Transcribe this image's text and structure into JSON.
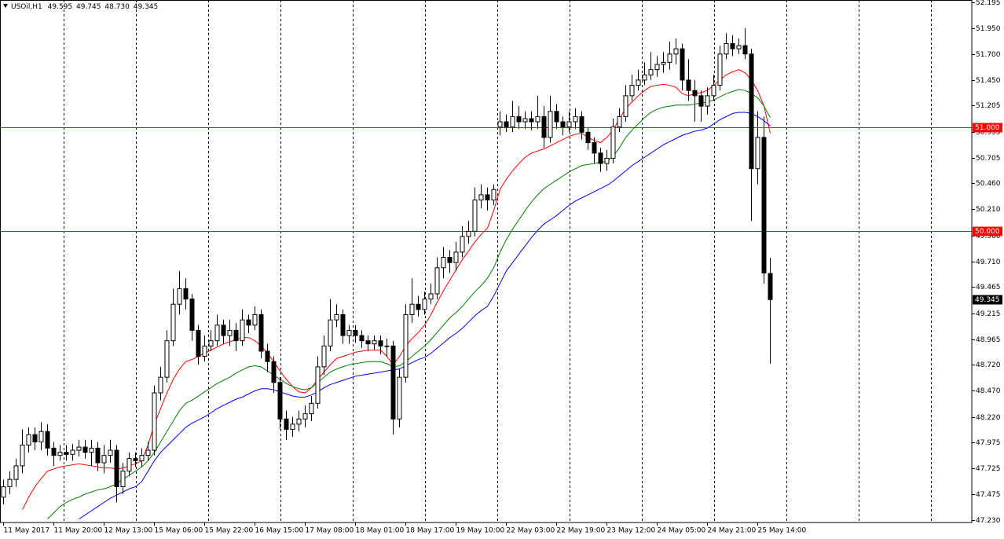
{
  "chart_data": {
    "type": "candlestick",
    "symbol": "USOil,H1",
    "ohlc_labels": [
      "49.595",
      "49.745",
      "48.730",
      "49.345"
    ],
    "categories": [
      "11 May 2017",
      null,
      null,
      null,
      null,
      null,
      null,
      null,
      "11 May 20:00",
      null,
      null,
      null,
      null,
      null,
      null,
      null,
      "12 May 13:00",
      null,
      null,
      null,
      null,
      null,
      null,
      null,
      "15 May 06:00",
      null,
      null,
      null,
      null,
      null,
      null,
      null,
      "15 May 22:00",
      null,
      null,
      null,
      null,
      null,
      null,
      null,
      "16 May 15:00",
      null,
      null,
      null,
      null,
      null,
      null,
      null,
      "17 May 08:00",
      null,
      null,
      null,
      null,
      null,
      null,
      null,
      "18 May 01:00",
      null,
      null,
      null,
      null,
      null,
      null,
      null,
      "18 May 17:00",
      null,
      null,
      null,
      null,
      null,
      null,
      null,
      "19 May 10:00",
      null,
      null,
      null,
      null,
      null,
      null,
      null,
      "22 May 03:00",
      null,
      null,
      null,
      null,
      null,
      null,
      null,
      "22 May 19:00",
      null,
      null,
      null,
      null,
      null,
      null,
      null,
      "23 May 12:00",
      null,
      null,
      null,
      null,
      null,
      null,
      null,
      "24 May 05:00",
      null,
      null,
      null,
      null,
      null,
      null,
      null,
      "24 May 21:00",
      null,
      null,
      null,
      null,
      null,
      null,
      null,
      "25 May 14:00",
      null,
      null
    ],
    "candles": {
      "open": [
        47.45,
        47.55,
        47.62,
        47.75,
        47.95,
        48.05,
        47.98,
        48.08,
        47.92,
        47.85,
        47.88,
        47.86,
        47.9,
        47.93,
        47.88,
        47.92,
        47.78,
        47.85,
        47.9,
        47.55,
        47.7,
        47.82,
        47.8,
        47.85,
        47.9,
        48.45,
        48.6,
        48.95,
        49.3,
        49.45,
        49.35,
        49.05,
        48.8,
        48.9,
        48.95,
        49.1,
        49.0,
        49.05,
        48.95,
        49.15,
        49.1,
        49.2,
        48.85,
        48.75,
        48.55,
        48.2,
        48.1,
        48.15,
        48.2,
        48.25,
        48.35,
        48.7,
        48.9,
        49.15,
        49.2,
        49.0,
        49.05,
        49.0,
        48.95,
        48.92,
        48.95,
        48.9,
        48.9,
        48.2,
        48.6,
        49.2,
        49.3,
        49.25,
        49.35,
        49.4,
        49.65,
        49.75,
        49.7,
        49.8,
        49.95,
        50.0,
        50.3,
        50.35,
        50.3,
        51.0,
        51.05,
        51.0,
        51.1,
        51.05,
        51.08,
        51.05,
        51.1,
        50.9,
        51.15,
        51.05,
        51.0,
        51.05,
        51.1,
        50.95,
        50.85,
        50.75,
        50.65,
        50.7,
        51.0,
        51.1,
        51.3,
        51.4,
        51.45,
        51.5,
        51.55,
        51.6,
        51.62,
        51.7,
        51.75,
        51.45,
        51.35,
        51.3,
        51.2,
        51.3,
        51.4,
        51.7,
        51.8,
        51.75,
        51.78,
        51.7,
        50.6,
        50.9,
        49.595
      ],
      "high": [
        47.62,
        47.7,
        47.82,
        48.1,
        48.12,
        48.12,
        48.17,
        48.15,
        47.98,
        47.95,
        47.95,
        47.96,
        48.0,
        48.0,
        48.0,
        47.98,
        47.95,
        48.0,
        47.95,
        47.78,
        47.88,
        47.88,
        47.92,
        47.98,
        48.52,
        48.7,
        49.05,
        49.45,
        49.62,
        49.55,
        49.4,
        49.1,
        49.0,
        49.05,
        49.2,
        49.15,
        49.15,
        49.12,
        49.25,
        49.2,
        49.28,
        49.25,
        48.92,
        48.8,
        48.6,
        48.28,
        48.22,
        48.28,
        48.33,
        48.42,
        48.8,
        49.0,
        49.35,
        49.3,
        49.25,
        49.1,
        49.1,
        49.05,
        49.0,
        49.0,
        49.0,
        48.97,
        48.95,
        48.68,
        49.3,
        49.55,
        49.38,
        49.42,
        49.5,
        49.75,
        49.85,
        49.82,
        49.9,
        50.05,
        50.1,
        50.42,
        50.45,
        50.42,
        50.45,
        51.15,
        51.12,
        51.25,
        51.2,
        51.15,
        51.15,
        51.3,
        51.2,
        51.3,
        51.22,
        51.1,
        51.15,
        51.18,
        51.15,
        51.0,
        50.9,
        50.8,
        50.78,
        51.08,
        51.18,
        51.4,
        51.5,
        51.55,
        51.62,
        51.72,
        51.68,
        51.72,
        51.82,
        51.85,
        51.8,
        51.65,
        51.45,
        51.35,
        51.38,
        51.5,
        51.78,
        51.9,
        51.88,
        51.85,
        51.95,
        51.75,
        51.15,
        51.1,
        49.745
      ],
      "low": [
        47.38,
        47.48,
        47.55,
        47.68,
        47.88,
        47.9,
        47.9,
        47.85,
        47.75,
        47.8,
        47.8,
        47.8,
        47.84,
        47.82,
        47.75,
        47.7,
        47.68,
        47.78,
        47.4,
        47.48,
        47.65,
        47.74,
        47.74,
        47.8,
        47.85,
        48.38,
        48.55,
        48.9,
        49.2,
        49.25,
        48.95,
        48.72,
        48.75,
        48.85,
        48.9,
        48.92,
        48.9,
        48.85,
        48.9,
        49.02,
        49.05,
        48.78,
        48.65,
        48.45,
        48.1,
        48.0,
        48.03,
        48.08,
        48.12,
        48.18,
        48.3,
        48.62,
        48.85,
        49.08,
        48.92,
        48.92,
        48.93,
        48.88,
        48.85,
        48.86,
        48.82,
        48.8,
        48.05,
        48.12,
        48.55,
        49.12,
        49.18,
        49.2,
        49.3,
        49.35,
        49.55,
        49.6,
        49.62,
        49.75,
        49.88,
        49.95,
        50.22,
        50.2,
        50.25,
        50.92,
        50.95,
        50.95,
        50.98,
        50.98,
        50.97,
        50.98,
        50.8,
        50.85,
        50.98,
        50.92,
        50.95,
        50.98,
        50.88,
        50.78,
        50.65,
        50.57,
        50.58,
        50.65,
        50.95,
        51.05,
        51.25,
        51.35,
        51.4,
        51.45,
        51.48,
        51.52,
        51.55,
        51.6,
        51.35,
        51.25,
        51.05,
        51.05,
        51.12,
        51.25,
        51.35,
        51.65,
        51.68,
        51.7,
        51.65,
        50.1,
        50.45,
        49.5,
        48.73
      ],
      "close": [
        47.55,
        47.62,
        47.75,
        47.95,
        48.05,
        47.98,
        48.08,
        47.92,
        47.85,
        47.88,
        47.86,
        47.9,
        47.93,
        47.88,
        47.92,
        47.78,
        47.85,
        47.9,
        47.55,
        47.7,
        47.82,
        47.8,
        47.85,
        47.9,
        48.45,
        48.6,
        48.95,
        49.3,
        49.45,
        49.35,
        49.05,
        48.8,
        48.9,
        48.95,
        49.1,
        49.0,
        49.05,
        48.95,
        49.15,
        49.1,
        49.2,
        48.85,
        48.75,
        48.55,
        48.2,
        48.1,
        48.15,
        48.2,
        48.25,
        48.35,
        48.7,
        48.9,
        49.15,
        49.2,
        49.0,
        49.05,
        49.0,
        48.95,
        48.92,
        48.95,
        48.9,
        48.9,
        48.2,
        48.6,
        49.2,
        49.3,
        49.25,
        49.35,
        49.4,
        49.65,
        49.75,
        49.7,
        49.8,
        49.95,
        50.0,
        50.3,
        50.35,
        50.3,
        50.4,
        51.05,
        51.0,
        51.1,
        51.05,
        51.08,
        51.05,
        51.1,
        50.9,
        51.15,
        51.05,
        51.0,
        51.05,
        51.1,
        50.95,
        50.85,
        50.75,
        50.65,
        50.7,
        51.0,
        51.1,
        51.3,
        51.4,
        51.45,
        51.5,
        51.55,
        51.6,
        51.62,
        51.7,
        51.75,
        51.45,
        51.35,
        51.3,
        51.2,
        51.3,
        51.4,
        51.7,
        51.8,
        51.75,
        51.78,
        51.7,
        50.6,
        50.9,
        49.6,
        49.345
      ]
    },
    "up_color": "#ffffff",
    "down_color": "#000000",
    "wick_color": "#000000",
    "lines": [
      {
        "color": "#ff0000",
        "values": [
          null,
          null,
          null,
          47.33,
          47.45,
          47.55,
          47.63,
          47.7,
          47.72,
          47.74,
          47.75,
          47.76,
          47.77,
          47.76,
          47.75,
          47.74,
          47.73,
          47.73,
          47.72,
          47.73,
          47.75,
          47.77,
          47.8,
          47.95,
          48.15,
          48.3,
          48.45,
          48.58,
          48.68,
          48.75,
          48.77,
          48.8,
          48.83,
          48.86,
          48.89,
          48.92,
          48.94,
          48.96,
          48.98,
          48.98,
          48.95,
          48.9,
          48.83,
          48.75,
          48.66,
          48.58,
          48.51,
          48.46,
          48.45,
          48.5,
          48.58,
          48.65,
          48.72,
          48.78,
          48.8,
          48.82,
          48.84,
          48.85,
          48.86,
          48.86,
          48.86,
          48.8,
          48.72,
          48.8,
          48.9,
          48.97,
          49.03,
          49.1,
          49.2,
          49.32,
          49.43,
          49.53,
          49.63,
          49.73,
          49.81,
          49.9,
          49.97,
          50.03,
          50.2,
          50.4,
          50.5,
          50.58,
          50.65,
          50.71,
          50.75,
          50.77,
          50.79,
          50.82,
          50.85,
          50.88,
          50.91,
          50.93,
          50.94,
          50.9,
          50.87,
          50.85,
          50.9,
          50.97,
          51.08,
          51.18,
          51.24,
          51.3,
          51.35,
          51.39,
          51.4,
          51.41,
          51.4,
          51.38,
          51.32,
          51.3,
          51.32,
          51.33,
          51.35,
          51.4,
          51.45,
          51.5,
          51.53,
          51.55,
          51.52,
          51.45,
          51.35,
          51.2,
          50.94
        ]
      },
      {
        "color": "#008000",
        "values": [
          null,
          null,
          null,
          null,
          null,
          null,
          null,
          47.24,
          47.3,
          47.36,
          47.4,
          47.43,
          47.45,
          47.48,
          47.5,
          47.52,
          47.53,
          47.55,
          47.58,
          47.62,
          47.66,
          47.7,
          47.74,
          47.8,
          47.88,
          47.98,
          48.08,
          48.18,
          48.28,
          48.35,
          48.38,
          48.42,
          48.46,
          48.5,
          48.54,
          48.57,
          48.6,
          48.64,
          48.67,
          48.7,
          48.71,
          48.7,
          48.66,
          48.62,
          48.58,
          48.54,
          48.51,
          48.49,
          48.48,
          48.5,
          48.55,
          48.6,
          48.65,
          48.68,
          48.7,
          48.72,
          48.73,
          48.74,
          48.75,
          48.75,
          48.75,
          48.73,
          48.7,
          48.71,
          48.75,
          48.8,
          48.85,
          48.9,
          48.96,
          49.03,
          49.1,
          49.17,
          49.22,
          49.28,
          49.35,
          49.42,
          49.48,
          49.55,
          49.65,
          49.8,
          49.92,
          50.02,
          50.11,
          50.2,
          50.28,
          50.35,
          50.41,
          50.45,
          50.49,
          50.53,
          50.57,
          50.6,
          50.63,
          50.64,
          50.65,
          50.66,
          50.67,
          50.72,
          50.8,
          50.9,
          50.97,
          51.03,
          51.09,
          51.14,
          51.17,
          51.19,
          51.2,
          51.21,
          51.21,
          51.21,
          51.22,
          51.23,
          51.24,
          51.26,
          51.29,
          51.32,
          51.34,
          51.36,
          51.35,
          51.32,
          51.28,
          51.2,
          51.09
        ]
      },
      {
        "color": "#0000ff",
        "values": [
          null,
          null,
          null,
          null,
          null,
          null,
          null,
          null,
          null,
          null,
          null,
          null,
          47.24,
          47.28,
          47.32,
          47.36,
          47.4,
          47.44,
          47.47,
          47.5,
          47.53,
          47.55,
          47.6,
          47.7,
          47.8,
          47.88,
          47.94,
          48.0,
          48.06,
          48.12,
          48.16,
          48.19,
          48.22,
          48.26,
          48.3,
          48.33,
          48.36,
          48.39,
          48.41,
          48.44,
          48.47,
          48.49,
          48.49,
          48.48,
          48.46,
          48.44,
          48.42,
          48.41,
          48.41,
          48.43,
          48.46,
          48.5,
          48.53,
          48.55,
          48.57,
          48.59,
          48.61,
          48.62,
          48.63,
          48.64,
          48.65,
          48.66,
          48.67,
          48.68,
          48.71,
          48.74,
          48.77,
          48.79,
          48.83,
          48.88,
          48.93,
          48.98,
          49.02,
          49.07,
          49.13,
          49.19,
          49.24,
          49.28,
          49.38,
          49.5,
          49.62,
          49.7,
          49.78,
          49.86,
          49.94,
          50.01,
          50.07,
          50.11,
          50.15,
          50.2,
          50.25,
          50.29,
          50.32,
          50.35,
          50.38,
          50.41,
          50.44,
          50.48,
          50.53,
          50.58,
          50.63,
          50.67,
          50.71,
          50.75,
          50.79,
          50.83,
          50.86,
          50.89,
          50.92,
          50.94,
          50.96,
          50.97,
          50.99,
          51.03,
          51.07,
          51.1,
          51.13,
          51.14,
          51.14,
          51.13,
          51.1,
          51.06,
          51.01
        ]
      }
    ],
    "hlines": [
      {
        "value": 51,
        "label": "51.000",
        "color": "#ff0000"
      },
      {
        "value": 50,
        "label": "50.000",
        "color": "#ff0000"
      }
    ],
    "last_price": {
      "value": 49.345,
      "label": "49.345"
    },
    "ylim": [
      47.207,
      52.218
    ],
    "yticks": [
      {
        "value": 52.195,
        "label": "52.195"
      },
      {
        "value": 51.95,
        "label": "51.950"
      },
      {
        "value": 51.7,
        "label": "51.700"
      },
      {
        "value": 51.45,
        "label": "51.450"
      },
      {
        "value": 51.205,
        "label": "51.205"
      },
      {
        "value": 50.955,
        "label": "50.955"
      },
      {
        "value": 50.705,
        "label": "50.705"
      },
      {
        "value": 50.46,
        "label": "50.460"
      },
      {
        "value": 50.21,
        "label": "50.210"
      },
      {
        "value": 49.96,
        "label": "49.960"
      },
      {
        "value": 49.71,
        "label": "49.710"
      },
      {
        "value": 49.465,
        "label": "49.465"
      },
      {
        "value": 49.215,
        "label": "49.215"
      },
      {
        "value": 48.965,
        "label": "48.965"
      },
      {
        "value": 48.72,
        "label": "48.720"
      },
      {
        "value": 48.47,
        "label": "48.470"
      },
      {
        "value": 48.22,
        "label": "48.220"
      },
      {
        "value": 47.975,
        "label": "47.975"
      },
      {
        "value": 47.725,
        "label": "47.725"
      },
      {
        "value": 47.475,
        "label": "47.475"
      },
      {
        "value": 47.23,
        "label": "47.230"
      }
    ],
    "grid": true
  }
}
